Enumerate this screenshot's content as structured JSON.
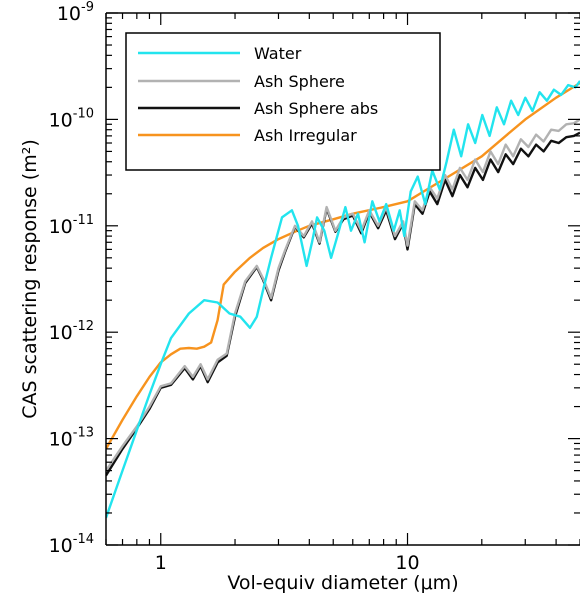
{
  "chart_data": {
    "type": "line",
    "xlabel": "Vol-equiv diameter (μm)",
    "ylabel": "CAS scattering response (m²)",
    "xscale": "log",
    "yscale": "log",
    "xlim": [
      0.6,
      50
    ],
    "ylim": [
      1e-14,
      1e-09
    ],
    "x_ticks": [
      {
        "value": 1,
        "label": "1"
      },
      {
        "value": 10,
        "label": "10"
      }
    ],
    "y_ticks": [
      {
        "value": 1e-14,
        "base": "10",
        "exp": "-14"
      },
      {
        "value": 1e-13,
        "base": "10",
        "exp": "-13"
      },
      {
        "value": 1e-12,
        "base": "10",
        "exp": "-12"
      },
      {
        "value": 1e-11,
        "base": "10",
        "exp": "-11"
      },
      {
        "value": 1e-10,
        "base": "10",
        "exp": "-10"
      },
      {
        "value": 1e-09,
        "base": "10",
        "exp": "-9"
      }
    ],
    "legend_position": "top-left",
    "series": [
      {
        "name": "Water",
        "color": "#22e4ee",
        "x": [
          0.6,
          0.7,
          0.8,
          0.9,
          1.0,
          1.1,
          1.3,
          1.5,
          1.7,
          1.9,
          2.1,
          2.3,
          2.45,
          2.6,
          2.8,
          3.1,
          3.4,
          3.6,
          3.9,
          4.1,
          4.3,
          4.6,
          4.9,
          5.2,
          5.6,
          5.9,
          6.3,
          6.7,
          7.2,
          7.7,
          8.2,
          8.8,
          9.3,
          9.7,
          10.3,
          11.0,
          11.8,
          12.6,
          13.5,
          14.4,
          15.4,
          16.5,
          17.6,
          18.8,
          20.1,
          21.5,
          23.0,
          24.6,
          26.3,
          28.1,
          30.0,
          32.1,
          34.3,
          36.7,
          39.2,
          41.9,
          44.8,
          47.9,
          50
        ],
        "y": [
          1.8e-14,
          5e-14,
          1.2e-13,
          2.6e-13,
          5e-13,
          8.8e-13,
          1.5e-12,
          2e-12,
          1.9e-12,
          1.5e-12,
          1.4e-12,
          1.1e-12,
          1.4e-12,
          2.5e-12,
          5e-12,
          1.2e-11,
          1.4e-11,
          1e-11,
          4.2e-12,
          7e-12,
          1.2e-11,
          9e-12,
          5e-12,
          8e-12,
          1.5e-11,
          9e-12,
          1.3e-11,
          7e-12,
          1.7e-11,
          1.1e-11,
          1.6e-11,
          9e-12,
          1.4e-11,
          8e-12,
          2.1e-11,
          2.9e-11,
          1.6e-11,
          3.3e-11,
          2.2e-11,
          4e-11,
          8e-11,
          4.5e-11,
          9e-11,
          6e-11,
          1.1e-10,
          7e-11,
          1.3e-10,
          9e-11,
          1.5e-10,
          1.1e-10,
          1.6e-10,
          1.2e-10,
          1.8e-10,
          1.5e-10,
          1.9e-10,
          1.7e-10,
          2.1e-10,
          2e-10,
          2.3e-10
        ]
      },
      {
        "name": "Ash Sphere",
        "color": "#b2b2b2",
        "x": [
          0.6,
          0.7,
          0.8,
          0.9,
          1.0,
          1.1,
          1.25,
          1.35,
          1.45,
          1.55,
          1.7,
          1.85,
          2.0,
          2.2,
          2.45,
          2.6,
          2.8,
          3.0,
          3.2,
          3.5,
          3.8,
          4.1,
          4.4,
          4.7,
          5.1,
          5.5,
          6.0,
          6.5,
          7.0,
          7.6,
          8.2,
          8.9,
          9.6,
          10.0,
          10.7,
          11.5,
          12.3,
          13.2,
          14.2,
          15.2,
          16.3,
          17.5,
          18.8,
          20.2,
          21.7,
          23.3,
          25.0,
          26.8,
          28.8,
          30.9,
          33.2,
          35.6,
          38.2,
          41.0,
          44.0,
          47.2,
          50
        ],
        "y": [
          5e-14,
          8.5e-14,
          1.3e-13,
          2e-13,
          3.1e-13,
          3.3e-13,
          4.8e-13,
          3.8e-13,
          5e-13,
          3.6e-13,
          5.5e-13,
          6.3e-13,
          1.5e-12,
          3e-12,
          4.2e-12,
          3.2e-12,
          2.1e-12,
          4e-12,
          6e-12,
          1e-11,
          8e-12,
          1.1e-11,
          7e-12,
          1.5e-11,
          9e-12,
          1.2e-11,
          1.3e-11,
          9e-12,
          1.4e-11,
          1e-11,
          1.5e-11,
          8e-12,
          1.1e-11,
          6.5e-12,
          1.7e-11,
          1.4e-11,
          2.3e-11,
          1.8e-11,
          3e-11,
          2.2e-11,
          3.5e-11,
          2.7e-11,
          4.2e-11,
          3.2e-11,
          5e-11,
          3.8e-11,
          5.8e-11,
          4.5e-11,
          6.5e-11,
          5.5e-11,
          7.2e-11,
          6.2e-11,
          8e-11,
          7.8e-11,
          9e-11,
          9.2e-11,
          1e-10
        ]
      },
      {
        "name": "Ash Sphere abs",
        "color": "#111111",
        "x": [
          0.6,
          0.7,
          0.8,
          0.9,
          1.0,
          1.1,
          1.25,
          1.35,
          1.45,
          1.55,
          1.7,
          1.85,
          2.0,
          2.2,
          2.45,
          2.6,
          2.8,
          3.0,
          3.2,
          3.5,
          3.8,
          4.1,
          4.4,
          4.7,
          5.1,
          5.5,
          6.0,
          6.5,
          7.0,
          7.6,
          8.2,
          8.9,
          9.6,
          10.0,
          10.7,
          11.5,
          12.3,
          13.2,
          14.2,
          15.2,
          16.3,
          17.5,
          18.8,
          20.2,
          21.7,
          23.3,
          25.0,
          26.8,
          28.8,
          30.9,
          33.2,
          35.6,
          38.2,
          41.0,
          44.0,
          47.2,
          50
        ],
        "y": [
          4.5e-14,
          8e-14,
          1.25e-13,
          1.9e-13,
          3e-13,
          3.2e-13,
          4.6e-13,
          3.6e-13,
          4.8e-13,
          3.4e-13,
          5.2e-13,
          6e-13,
          1.4e-12,
          2.9e-12,
          4.1e-12,
          3.1e-12,
          2e-12,
          3.8e-12,
          5.8e-12,
          9.8e-12,
          7.8e-12,
          1.05e-11,
          6.8e-12,
          1.45e-11,
          8.8e-12,
          1.15e-11,
          1.25e-11,
          8.5e-12,
          1.35e-11,
          9.5e-12,
          1.4e-11,
          7.5e-12,
          1.05e-11,
          6e-12,
          1.6e-11,
          1.3e-11,
          2.1e-11,
          1.6e-11,
          2.7e-11,
          1.9e-11,
          3e-11,
          2.3e-11,
          3.5e-11,
          2.7e-11,
          4.2e-11,
          3.2e-11,
          4.7e-11,
          3.8e-11,
          5.3e-11,
          4.5e-11,
          5.8e-11,
          5e-11,
          6.3e-11,
          6e-11,
          6.8e-11,
          7e-11,
          7.5e-11
        ]
      },
      {
        "name": "Ash Irregular",
        "color": "#f7931e",
        "x": [
          0.6,
          0.7,
          0.8,
          0.9,
          1.0,
          1.1,
          1.2,
          1.3,
          1.4,
          1.5,
          1.6,
          1.7,
          1.8,
          2.0,
          2.3,
          2.6,
          3.0,
          3.5,
          4.0,
          5.0,
          6.0,
          8.0,
          10.0,
          12.0,
          15.0,
          20.0,
          25.0,
          30.0,
          40.0,
          50.0
        ],
        "y": [
          8e-14,
          1.5e-13,
          2.5e-13,
          3.8e-13,
          5.2e-13,
          6.2e-13,
          7e-13,
          7.1e-13,
          7e-13,
          7.3e-13,
          8e-13,
          1.3e-12,
          2.8e-12,
          3.7e-12,
          5e-12,
          6.2e-12,
          7.5e-12,
          8.8e-12,
          1e-11,
          1.15e-11,
          1.3e-11,
          1.5e-11,
          1.7e-11,
          2.2e-11,
          3e-11,
          4.5e-11,
          7e-11,
          1e-10,
          1.6e-10,
          2.2e-10
        ]
      }
    ]
  }
}
